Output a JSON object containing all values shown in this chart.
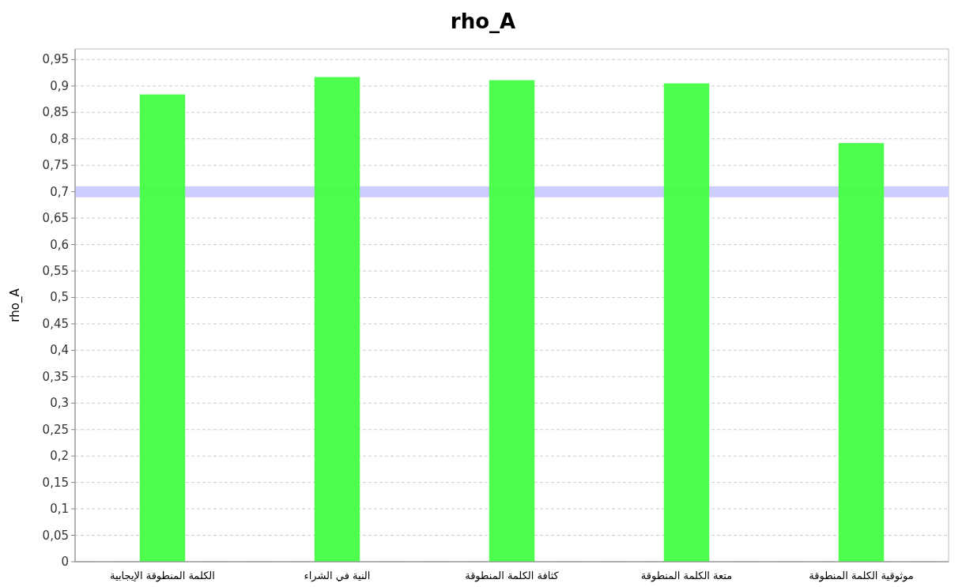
{
  "chart_data": {
    "type": "bar",
    "title": "rho_A",
    "ylabel": "rho_A",
    "categories": [
      "الكلمة المنطوقة الإيجابية",
      "النية في الشراء",
      "كثافة الكلمة المنطوقة",
      "متعة الكلمة المنطوقة",
      "موثوقية الكلمة المنطوقة"
    ],
    "values": [
      0.884,
      0.917,
      0.911,
      0.905,
      0.792
    ],
    "color": "#44ff44",
    "ylim": [
      0,
      0.97
    ],
    "yticks": [
      0,
      {
        "value": 0.05,
        "label": "0,05"
      },
      {
        "value": 0.1,
        "label": "0,1"
      },
      {
        "value": 0.15,
        "label": "0,15"
      },
      {
        "value": 0.2,
        "label": "0,2"
      },
      {
        "value": 0.25,
        "label": "0,25"
      },
      {
        "value": 0.3,
        "label": "0,3"
      },
      {
        "value": 0.35,
        "label": "0,35"
      },
      {
        "value": 0.4,
        "label": "0,4"
      },
      {
        "value": 0.45,
        "label": "0,45"
      },
      {
        "value": 0.5,
        "label": "0,5"
      },
      {
        "value": 0.55,
        "label": "0,55"
      },
      {
        "value": 0.6,
        "label": "0,6"
      },
      {
        "value": 0.65,
        "label": "0,65"
      },
      {
        "value": 0.7,
        "label": "0,7"
      },
      {
        "value": 0.75,
        "label": "0,75"
      },
      {
        "value": 0.8,
        "label": "0,8"
      },
      {
        "value": 0.85,
        "label": "0,85"
      },
      {
        "value": 0.9,
        "label": "0,9"
      },
      {
        "value": 0.95,
        "label": "0,95"
      }
    ],
    "grid": "y",
    "ref_lines": [
      {
        "axis": "y",
        "value": 0.7,
        "color": "#c8c8ff"
      }
    ]
  }
}
